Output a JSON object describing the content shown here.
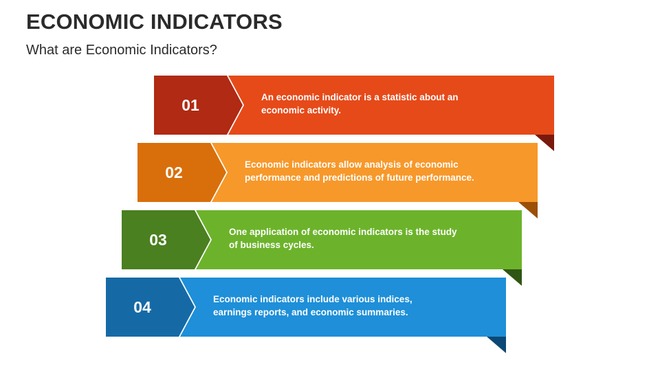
{
  "header": {
    "title": "ECONOMIC INDICATORS",
    "subtitle": "What are Economic Indicators?"
  },
  "steps": [
    {
      "number": "01",
      "text": "An economic indicator is a statistic about an economic activity.",
      "colors": {
        "banner": "#E64A19",
        "badge": "#B02A14",
        "fold": "#7A1A0C"
      }
    },
    {
      "number": "02",
      "text": "Economic indicators allow analysis of economic performance and predictions of future performance.",
      "colors": {
        "banner": "#F7982A",
        "badge": "#D96F0B",
        "fold": "#9C4F07"
      }
    },
    {
      "number": "03",
      "text": "One application of economic indicators is the study of business cycles.",
      "colors": {
        "banner": "#6CB32B",
        "badge": "#4A8020",
        "fold": "#2F5614"
      }
    },
    {
      "number": "04",
      "text": "Economic indicators include various indices, earnings reports, and economic summaries.",
      "colors": {
        "banner": "#1E8FD8",
        "badge": "#156AA6",
        "fold": "#0C4875"
      }
    }
  ]
}
